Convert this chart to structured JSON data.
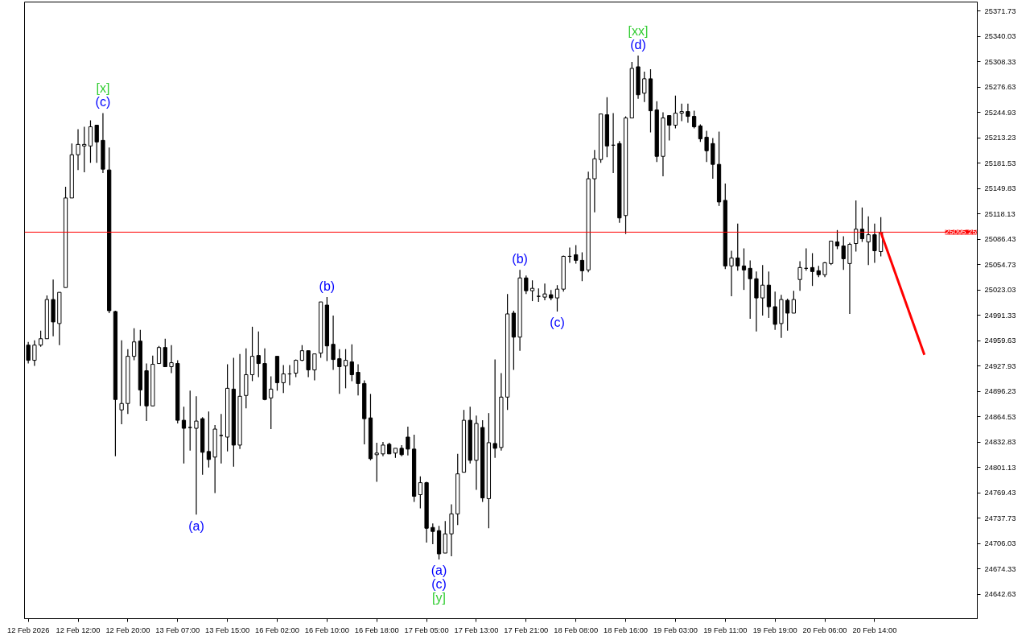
{
  "chart_data": {
    "type": "candlestick",
    "categories": [
      "12 Feb 2026",
      null,
      null,
      null,
      null,
      null,
      null,
      null,
      "12 Feb 12:00",
      null,
      null,
      null,
      null,
      null,
      null,
      null,
      "12 Feb 20:00",
      null,
      null,
      null,
      null,
      null,
      null,
      null,
      "13 Feb 07:00",
      null,
      null,
      null,
      null,
      null,
      null,
      null,
      "13 Feb 15:00",
      null,
      null,
      null,
      null,
      null,
      null,
      null,
      "16 Feb 02:00",
      null,
      null,
      null,
      null,
      null,
      null,
      null,
      "16 Feb 10:00",
      null,
      null,
      null,
      null,
      null,
      null,
      null,
      "16 Feb 18:00",
      null,
      null,
      null,
      null,
      null,
      null,
      null,
      "17 Feb 05:00",
      null,
      null,
      null,
      null,
      null,
      null,
      null,
      "17 Feb 13:00",
      null,
      null,
      null,
      null,
      null,
      null,
      null,
      "17 Feb 21:00",
      null,
      null,
      null,
      null,
      null,
      null,
      null,
      "18 Feb 08:00",
      null,
      null,
      null,
      null,
      null,
      null,
      null,
      "18 Feb 16:00",
      null,
      null,
      null,
      null,
      null,
      null,
      null,
      "19 Feb 03:00",
      null,
      null,
      null,
      null,
      null,
      null,
      null,
      "19 Feb 11:00",
      null,
      null,
      null,
      null,
      null,
      null,
      null,
      "19 Feb 19:00",
      null,
      null,
      null,
      null,
      null,
      null,
      null,
      "20 Feb 06:00",
      null,
      null,
      null,
      null,
      null,
      null,
      null,
      "20 Feb 14:00",
      null,
      null,
      null,
      null,
      null,
      null,
      null,
      null,
      null,
      null,
      null,
      null,
      null,
      null,
      null,
      null
    ],
    "ohlc": [
      [
        24954,
        24958,
        24931,
        24935
      ],
      [
        24935,
        24960,
        24928,
        24954
      ],
      [
        24954,
        24972,
        24952,
        24962
      ],
      [
        24962,
        25016,
        24962,
        25011
      ],
      [
        25011,
        25036,
        24965,
        24983
      ],
      [
        24981,
        25020,
        24954,
        25020
      ],
      [
        25026,
        25152,
        25026,
        25138
      ],
      [
        25138,
        25206,
        25138,
        25192
      ],
      [
        25192,
        25224,
        25173,
        25205
      ],
      [
        25203,
        25227,
        25170,
        25205
      ],
      [
        25203,
        25235,
        25182,
        25227
      ],
      [
        25229,
        25229,
        25182,
        25208
      ],
      [
        25210,
        25244,
        25169,
        25174
      ],
      [
        25173,
        25201,
        24994,
        24997
      ],
      [
        24996,
        24997,
        24815,
        24886
      ],
      [
        24873,
        24960,
        24855,
        24881
      ],
      [
        24881,
        24949,
        24868,
        24940
      ],
      [
        24940,
        24975,
        24935,
        24958
      ],
      [
        24959,
        24973,
        24878,
        24898
      ],
      [
        24922,
        24931,
        24859,
        24878
      ],
      [
        24878,
        24941,
        24878,
        24930
      ],
      [
        24931,
        24953,
        24931,
        24951
      ],
      [
        24951,
        24962,
        24927,
        24927
      ],
      [
        24927,
        24954,
        24919,
        24932
      ],
      [
        24931,
        24935,
        24856,
        24860
      ],
      [
        24860,
        24877,
        24806,
        24850
      ],
      [
        24851,
        24897,
        24822,
        24851
      ],
      [
        24850,
        24890,
        24742,
        24859
      ],
      [
        24862,
        24864,
        24792,
        24820
      ],
      [
        24821,
        24871,
        24801,
        24811
      ],
      [
        24814,
        24854,
        24769,
        24849
      ],
      [
        24841,
        24868,
        24806,
        24841
      ],
      [
        24839,
        24930,
        24821,
        24900
      ],
      [
        24899,
        24938,
        24802,
        24829
      ],
      [
        24829,
        24943,
        24824,
        24890
      ],
      [
        24891,
        24950,
        24875,
        24917
      ],
      [
        24917,
        24977,
        24909,
        24940
      ],
      [
        24941,
        24971,
        24914,
        24931
      ],
      [
        24931,
        24950,
        24885,
        24886
      ],
      [
        24888,
        24915,
        24849,
        24899
      ],
      [
        24940,
        24940,
        24897,
        24907
      ],
      [
        24907,
        24929,
        24894,
        24918
      ],
      [
        24918,
        24929,
        24904,
        24918
      ],
      [
        24919,
        24936,
        24914,
        24935
      ],
      [
        24935,
        24954,
        24934,
        24947
      ],
      [
        24947,
        24947,
        24914,
        24923
      ],
      [
        24923,
        24943,
        24910,
        24943
      ],
      [
        24944,
        25008,
        24938,
        25008
      ],
      [
        25004,
        25014,
        24934,
        24953
      ],
      [
        24955,
        24991,
        24923,
        24936
      ],
      [
        24937,
        24949,
        24893,
        24927
      ],
      [
        24928,
        24949,
        24900,
        24935
      ],
      [
        24933,
        24955,
        24909,
        24917
      ],
      [
        24920,
        24930,
        24891,
        24906
      ],
      [
        24906,
        24910,
        24830,
        24862
      ],
      [
        24863,
        24893,
        24810,
        24812
      ],
      [
        24817,
        24832,
        24783,
        24819
      ],
      [
        24818,
        24833,
        24815,
        24829
      ],
      [
        24830,
        24832,
        24818,
        24818
      ],
      [
        24819,
        24825,
        24813,
        24825
      ],
      [
        24825,
        24829,
        24815,
        24817
      ],
      [
        24839,
        24852,
        24816,
        24824
      ],
      [
        24824,
        24842,
        24758,
        24765
      ],
      [
        24767,
        24790,
        24750,
        24782
      ],
      [
        24782,
        24783,
        24707,
        24725
      ],
      [
        24726,
        24731,
        24705,
        24721
      ],
      [
        24722,
        24728,
        24686,
        24693
      ],
      [
        24694,
        24734,
        24694,
        24718
      ],
      [
        24718,
        24755,
        24690,
        24743
      ],
      [
        24743,
        24818,
        24729,
        24793
      ],
      [
        24795,
        24873,
        24795,
        24860
      ],
      [
        24860,
        24877,
        24806,
        24810
      ],
      [
        24810,
        24866,
        24773,
        24856
      ],
      [
        24851,
        24860,
        24758,
        24763
      ],
      [
        24762,
        24869,
        24725,
        24832
      ],
      [
        24831,
        24936,
        24813,
        24825
      ],
      [
        24826,
        24919,
        24822,
        24889
      ],
      [
        24889,
        25018,
        24873,
        24993
      ],
      [
        24994,
        24997,
        24923,
        24964
      ],
      [
        24964,
        25048,
        24947,
        25038
      ],
      [
        25038,
        25041,
        25018,
        25022
      ],
      [
        25022,
        25035,
        25009,
        25025
      ],
      [
        25015,
        25025,
        25008,
        25015
      ],
      [
        25014,
        25031,
        25010,
        25018
      ],
      [
        25017,
        25023,
        25010,
        25013
      ],
      [
        25013,
        25029,
        24996,
        25024
      ],
      [
        25024,
        25066,
        25021,
        25065
      ],
      [
        25065,
        25076,
        25057,
        25065
      ],
      [
        25067,
        25079,
        25056,
        25060
      ],
      [
        25060,
        25070,
        25034,
        25047
      ],
      [
        25048,
        25171,
        25045,
        25162
      ],
      [
        25162,
        25198,
        25120,
        25187
      ],
      [
        25186,
        25243,
        25182,
        25243
      ],
      [
        25242,
        25264,
        25189,
        25203
      ],
      [
        25204,
        25244,
        25169,
        25204
      ],
      [
        25206,
        25209,
        25107,
        25113
      ],
      [
        25116,
        25240,
        25093,
        25238
      ],
      [
        25238,
        25308,
        25238,
        25300
      ],
      [
        25302,
        25316,
        25262,
        25267
      ],
      [
        25269,
        25296,
        25258,
        25287
      ],
      [
        25287,
        25299,
        25220,
        25247
      ],
      [
        25248,
        25259,
        25183,
        25190
      ],
      [
        25190,
        25245,
        25165,
        25238
      ],
      [
        25241,
        25241,
        25210,
        25229
      ],
      [
        25229,
        25266,
        25225,
        25244
      ],
      [
        25244,
        25256,
        25234,
        25246
      ],
      [
        25246,
        25256,
        25232,
        25240
      ],
      [
        25240,
        25247,
        25225,
        25227
      ],
      [
        25228,
        25230,
        25208,
        25212
      ],
      [
        25214,
        25222,
        25183,
        25197
      ],
      [
        25206,
        25213,
        25162,
        25180
      ],
      [
        25180,
        25221,
        25128,
        25133
      ],
      [
        25135,
        25156,
        25049,
        25053
      ],
      [
        25053,
        25072,
        25015,
        25063
      ],
      [
        25063,
        25106,
        25047,
        25053
      ],
      [
        25053,
        25075,
        25023,
        25048
      ],
      [
        25050,
        25060,
        24987,
        25037
      ],
      [
        25037,
        25046,
        24971,
        25013
      ],
      [
        25013,
        25054,
        24991,
        25029
      ],
      [
        25029,
        25046,
        24988,
        25002
      ],
      [
        25002,
        25021,
        24973,
        24980
      ],
      [
        24981,
        25017,
        24963,
        25011
      ],
      [
        25010,
        25012,
        24972,
        24994
      ],
      [
        24994,
        25022,
        24994,
        25011
      ],
      [
        25036,
        25059,
        25022,
        25051
      ],
      [
        25050,
        25075,
        25047,
        25050
      ],
      [
        25051,
        25069,
        25028,
        25046
      ],
      [
        25047,
        25053,
        25039,
        25042
      ],
      [
        25042,
        25058,
        25039,
        25057
      ],
      [
        25056,
        25084,
        25054,
        25084
      ],
      [
        25083,
        25098,
        25074,
        25078
      ],
      [
        25078,
        25090,
        25048,
        25062
      ],
      [
        25056,
        25082,
        24993,
        25080
      ],
      [
        25081,
        25135,
        25071,
        25099
      ],
      [
        25099,
        25126,
        25083,
        25087
      ],
      [
        25083,
        25115,
        25054,
        25092
      ],
      [
        25092,
        25106,
        25057,
        25072
      ],
      [
        25071,
        25114,
        25065,
        25095
      ],
      null,
      null,
      null,
      null,
      null,
      null,
      null,
      null,
      null,
      null,
      null,
      null,
      null,
      null,
      null
    ],
    "ylim": [
      24612,
      25383
    ],
    "yticks": [
      25371.73,
      25340.03,
      25308.33,
      25276.63,
      25244.93,
      25213.23,
      25181.53,
      25149.83,
      25118.13,
      25086.43,
      25054.73,
      25023.03,
      24991.33,
      24959.63,
      24927.93,
      24896.23,
      24864.53,
      24832.83,
      24801.13,
      24769.43,
      24737.73,
      24706.03,
      24674.33,
      24642.63
    ],
    "grid": false,
    "series": [
      {
        "type": "line",
        "color": "#ff0000",
        "values": [
          null,
          null,
          null,
          null,
          null,
          null,
          null,
          null,
          null,
          null,
          null,
          null,
          null,
          null,
          null,
          null,
          null,
          null,
          null,
          null,
          null,
          null,
          null,
          null,
          null,
          null,
          null,
          null,
          null,
          null,
          null,
          null,
          null,
          null,
          null,
          null,
          null,
          null,
          null,
          null,
          null,
          null,
          null,
          null,
          null,
          null,
          null,
          null,
          null,
          null,
          null,
          null,
          null,
          null,
          null,
          null,
          null,
          null,
          null,
          null,
          null,
          null,
          null,
          null,
          null,
          null,
          null,
          null,
          null,
          null,
          null,
          null,
          null,
          null,
          null,
          null,
          null,
          null,
          null,
          null,
          null,
          null,
          null,
          null,
          null,
          null,
          null,
          null,
          null,
          null,
          null,
          null,
          null,
          null,
          null,
          null,
          null,
          null,
          null,
          null,
          null,
          null,
          null,
          null,
          null,
          null,
          null,
          null,
          null,
          null,
          null,
          null,
          null,
          null,
          null,
          null,
          null,
          null,
          null,
          null,
          null,
          null,
          null,
          null,
          null,
          null,
          null,
          null,
          null,
          null,
          null,
          null,
          null,
          null,
          null,
          null,
          null,
          25095,
          null,
          null,
          null,
          null,
          null,
          null,
          24942,
          null,
          null,
          null,
          null,
          null,
          null,
          null,
          null
        ]
      }
    ],
    "ref_lines": [
      {
        "axis": "y",
        "value": 25095.25,
        "label": "25095.25",
        "color": "#ff0000"
      }
    ],
    "annotations": [
      {
        "text": "[x]",
        "y": 25244
      },
      {
        "text": "(c)",
        "y": 25244
      },
      {
        "text": "(a)",
        "y": 24742
      },
      {
        "text": "(b)",
        "y": 25014
      },
      {
        "text": "(a)",
        "y": 24686
      },
      {
        "text": "(c)",
        "y": 24686
      },
      {
        "text": "[y]",
        "y": 24686
      },
      {
        "text": "(b)",
        "y": 25048
      },
      {
        "text": "(c)",
        "y": 24996
      },
      {
        "text": "[xx]",
        "y": 25316
      },
      {
        "text": "(d)",
        "y": 25316
      }
    ]
  }
}
